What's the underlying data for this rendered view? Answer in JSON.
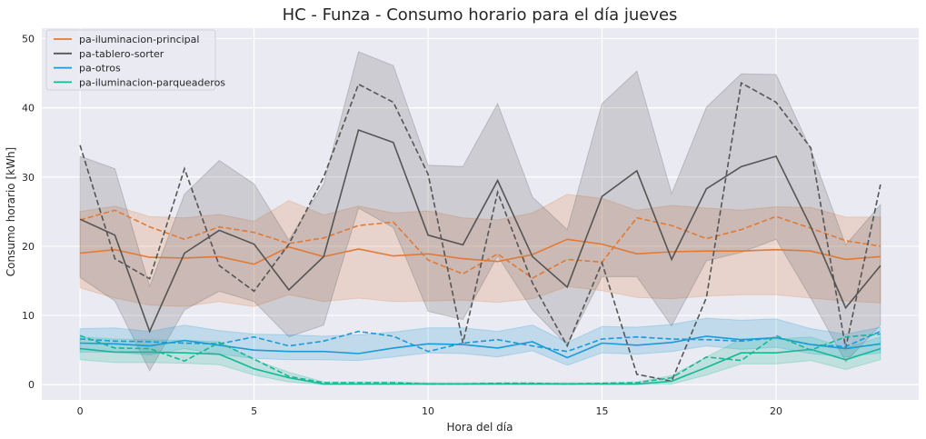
{
  "chart_data": {
    "type": "line",
    "title": "HC - Funza - Consumo horario para el día jueves",
    "xlabel": "Hora del día",
    "ylabel": "Consumo horario [kWh]",
    "xlim": [
      -1.1,
      24.1
    ],
    "ylim": [
      -2.2,
      51.5
    ],
    "xticks": [
      0,
      5,
      10,
      15,
      20
    ],
    "yticks": [
      0,
      10,
      20,
      30,
      40,
      50
    ],
    "grid": true,
    "legend_position": "top-left",
    "x": [
      0,
      1,
      2,
      3,
      4,
      5,
      6,
      7,
      8,
      9,
      10,
      11,
      12,
      13,
      14,
      15,
      16,
      17,
      18,
      19,
      20,
      21,
      22,
      23
    ],
    "series": [
      {
        "name": "pa-iluminacion-principal",
        "color": "#e07a36",
        "mean": [
          19.0,
          19.5,
          18.4,
          18.3,
          18.5,
          17.4,
          19.9,
          18.5,
          19.6,
          18.6,
          18.9,
          18.2,
          17.8,
          18.8,
          21.0,
          20.3,
          18.9,
          19.2,
          19.3,
          19.3,
          19.5,
          19.3,
          18.1,
          18.5
        ],
        "dashed": [
          23.8,
          25.2,
          22.8,
          21.0,
          22.8,
          22.0,
          20.4,
          21.2,
          23.0,
          23.5,
          18.0,
          16.0,
          18.9,
          15.4,
          18.1,
          17.7,
          24.1,
          23.0,
          21.1,
          22.4,
          24.3,
          22.6,
          20.8,
          20.0
        ],
        "lower": [
          14.0,
          12.5,
          11.5,
          11.3,
          12.0,
          11.3,
          13.0,
          12.0,
          12.5,
          12.0,
          12.1,
          12.2,
          11.9,
          12.4,
          14.2,
          13.6,
          12.6,
          12.4,
          12.8,
          13.0,
          13.0,
          12.5,
          12.1,
          11.8
        ],
        "upper": [
          25.0,
          25.8,
          24.3,
          24.1,
          24.6,
          23.6,
          26.6,
          24.5,
          25.8,
          24.8,
          25.1,
          24.1,
          23.8,
          24.8,
          27.5,
          26.9,
          25.2,
          25.9,
          25.5,
          25.2,
          25.7,
          25.6,
          24.2,
          24.2
        ]
      },
      {
        "name": "pa-tablero-sorter",
        "color": "#555555",
        "mean": [
          23.9,
          21.6,
          7.7,
          19.0,
          22.3,
          20.3,
          13.7,
          18.5,
          36.8,
          35.0,
          21.6,
          20.2,
          29.5,
          18.5,
          14.1,
          27.2,
          30.9,
          18.1,
          28.3,
          31.5,
          33.0,
          22.8,
          11.1,
          17.2
        ],
        "dashed": [
          34.6,
          18.2,
          15.3,
          31.2,
          17.2,
          13.5,
          20.3,
          30.0,
          43.4,
          40.8,
          30.4,
          6.0,
          27.8,
          14.7,
          5.6,
          17.6,
          1.5,
          0.5,
          12.6,
          43.6,
          40.8,
          34.2,
          5.3,
          28.9
        ],
        "lower": [
          15.5,
          12.1,
          2.0,
          10.8,
          13.5,
          12.0,
          6.9,
          8.6,
          25.5,
          22.7,
          10.6,
          9.4,
          18.6,
          10.8,
          5.7,
          15.6,
          15.6,
          8.5,
          17.9,
          19.1,
          21.0,
          12.5,
          3.3,
          8.6
        ],
        "upper": [
          33.0,
          31.2,
          14.2,
          27.5,
          32.4,
          29.0,
          20.9,
          29.0,
          48.1,
          46.1,
          31.7,
          31.5,
          40.6,
          27.1,
          22.4,
          40.6,
          45.3,
          27.6,
          40.1,
          44.9,
          44.8,
          33.9,
          20.2,
          26.0
        ]
      },
      {
        "name": "pa-otros",
        "color": "#1a9ad6",
        "mean": [
          6.0,
          5.9,
          5.6,
          6.4,
          5.7,
          5.0,
          4.8,
          4.8,
          4.5,
          5.3,
          5.9,
          5.8,
          5.3,
          6.2,
          3.9,
          6.0,
          5.7,
          6.1,
          7.0,
          6.5,
          6.8,
          5.8,
          5.2,
          5.9
        ],
        "dashed": [
          6.6,
          6.3,
          6.2,
          6.0,
          5.9,
          6.9,
          5.6,
          6.3,
          7.7,
          7.0,
          4.8,
          6.0,
          6.5,
          5.6,
          4.8,
          6.6,
          6.9,
          6.6,
          6.5,
          6.3,
          6.8,
          5.8,
          5.5,
          7.7
        ],
        "lower": [
          4.7,
          4.7,
          4.3,
          5.2,
          4.4,
          3.8,
          3.6,
          3.6,
          3.5,
          4.0,
          4.6,
          4.5,
          4.0,
          4.9,
          2.8,
          4.6,
          4.4,
          4.8,
          5.6,
          5.1,
          5.4,
          4.5,
          4.0,
          4.6
        ],
        "upper": [
          8.1,
          8.2,
          7.7,
          8.6,
          7.8,
          7.3,
          7.2,
          7.0,
          7.2,
          7.6,
          8.2,
          8.2,
          7.7,
          8.6,
          6.1,
          8.4,
          8.3,
          8.7,
          9.6,
          9.3,
          9.5,
          8.1,
          7.3,
          8.3
        ]
      },
      {
        "name": "pa-iluminacion-parqueaderos",
        "color": "#15b894",
        "mean": [
          5.2,
          4.7,
          4.7,
          4.6,
          4.4,
          2.3,
          1.0,
          0.1,
          0.1,
          0.1,
          0.1,
          0.1,
          0.1,
          0.1,
          0.1,
          0.1,
          0.1,
          0.5,
          2.5,
          4.6,
          4.6,
          5.1,
          3.6,
          5.2
        ],
        "dashed": [
          7.1,
          5.3,
          5.2,
          3.4,
          6.1,
          3.7,
          1.2,
          0.3,
          0.3,
          0.3,
          0.1,
          0.1,
          0.2,
          0.2,
          0.1,
          0.2,
          0.3,
          1.0,
          4.0,
          3.5,
          7.1,
          5.0,
          6.9,
          7.3
        ],
        "lower": [
          3.6,
          3.2,
          3.2,
          3.1,
          2.9,
          1.4,
          0.4,
          0.0,
          0.0,
          0.0,
          0.0,
          0.0,
          0.0,
          0.0,
          0.0,
          0.0,
          0.0,
          0.1,
          1.4,
          3.0,
          3.0,
          3.5,
          2.2,
          3.6
        ],
        "upper": [
          6.9,
          6.6,
          6.5,
          6.4,
          6.2,
          3.6,
          1.8,
          0.4,
          0.4,
          0.4,
          0.3,
          0.3,
          0.3,
          0.3,
          0.3,
          0.3,
          0.4,
          1.3,
          4.0,
          6.6,
          6.6,
          6.9,
          5.3,
          6.9
        ]
      }
    ]
  },
  "style": {
    "plot_background": "#eaeaf2",
    "grid_color": "#ffffff"
  }
}
